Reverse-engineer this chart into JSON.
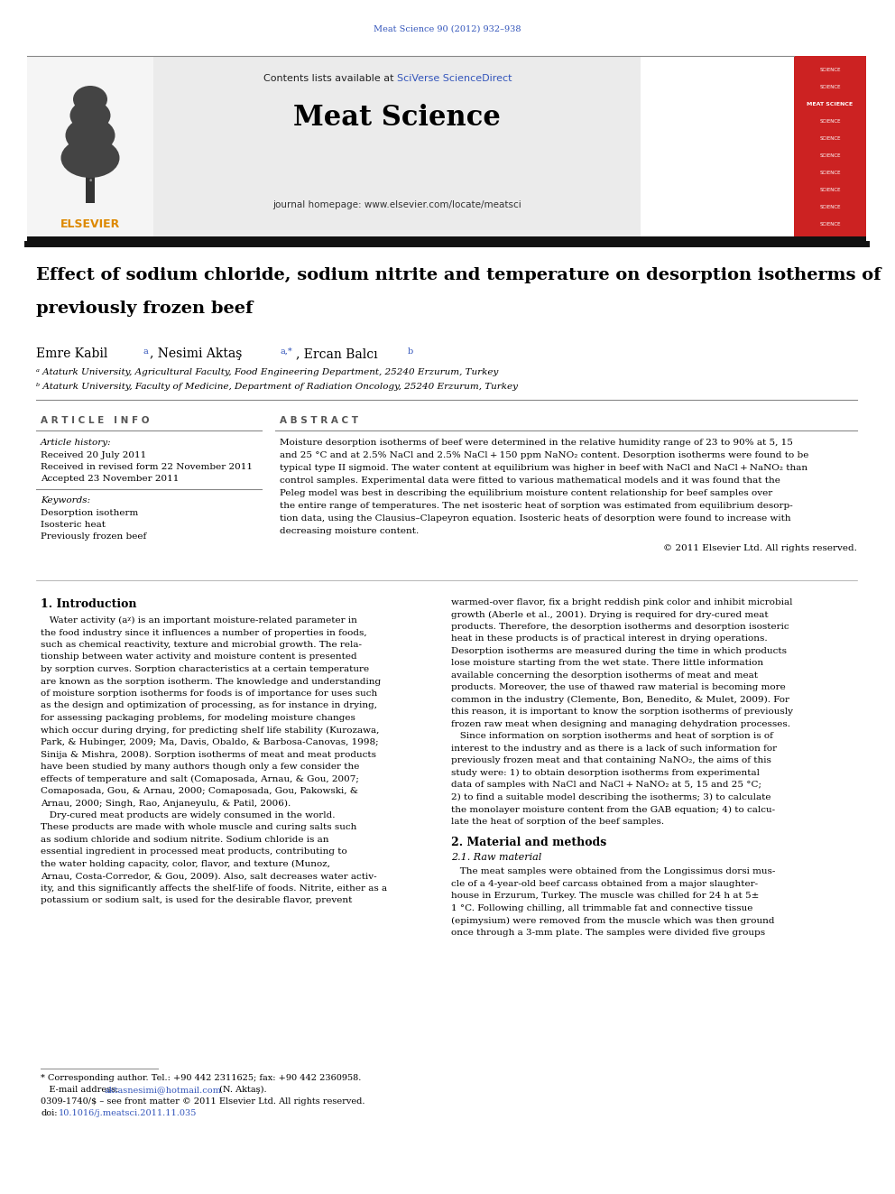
{
  "page_width": 9.92,
  "page_height": 13.23,
  "background_color": "#ffffff",
  "journal_ref": "Meat Science 90 (2012) 932–938",
  "journal_ref_color": "#3355bb",
  "header_bg": "#ebebeb",
  "header_text1": "Contents lists available at ",
  "header_sciverse": "SciVerse ScienceDirect",
  "header_sciverse_color": "#3355bb",
  "journal_name": "Meat Science",
  "journal_homepage": "journal homepage: www.elsevier.com/locate/meatsci",
  "title_line1": "Effect of sodium chloride, sodium nitrite and temperature on desorption isotherms of",
  "title_line2": "previously frozen beef",
  "author_main": "Emre Kabil ",
  "author_a1": "a",
  "author_mid": ", Nesimi Aktaş ",
  "author_a2": "a,*",
  "author_end": ", Ercan Balcı ",
  "author_b": "b",
  "affil_a": "ᵃ Ataturk University, Agricultural Faculty, Food Engineering Department, 25240 Erzurum, Turkey",
  "affil_b": "ᵇ Ataturk University, Faculty of Medicine, Department of Radiation Oncology, 25240 Erzurum, Turkey",
  "article_info_header": "A R T I C L E   I N F O",
  "abstract_header": "A B S T R A C T",
  "article_history_label": "Article history:",
  "received1": "Received 20 July 2011",
  "received2": "Received in revised form 22 November 2011",
  "accepted": "Accepted 23 November 2011",
  "keywords_label": "Keywords:",
  "keyword1": "Desorption isotherm",
  "keyword2": "Isosteric heat",
  "keyword3": "Previously frozen beef",
  "abstract_lines": [
    "Moisture desorption isotherms of beef were determined in the relative humidity range of 23 to 90% at 5, 15",
    "and 25 °C and at 2.5% NaCl and 2.5% NaCl + 150 ppm NaNO₂ content. Desorption isotherms were found to be",
    "typical type II sigmoid. The water content at equilibrium was higher in beef with NaCl and NaCl + NaNO₂ than",
    "control samples. Experimental data were fitted to various mathematical models and it was found that the",
    "Peleg model was best in describing the equilibrium moisture content relationship for beef samples over",
    "the entire range of temperatures. The net isosteric heat of sorption was estimated from equilibrium desorp-",
    "tion data, using the Clausius–Clapeyron equation. Isosteric heats of desorption were found to increase with",
    "decreasing moisture content."
  ],
  "copyright": "© 2011 Elsevier Ltd. All rights reserved.",
  "intro_header": "1. Introduction",
  "intro_col1_lines": [
    "   Water activity (aᵡ) is an important moisture-related parameter in",
    "the food industry since it influences a number of properties in foods,",
    "such as chemical reactivity, texture and microbial growth. The rela-",
    "tionship between water activity and moisture content is presented",
    "by sorption curves. Sorption characteristics at a certain temperature",
    "are known as the sorption isotherm. The knowledge and understanding",
    "of moisture sorption isotherms for foods is of importance for uses such",
    "as the design and optimization of processing, as for instance in drying,",
    "for assessing packaging problems, for modeling moisture changes",
    "which occur during drying, for predicting shelf life stability (Kurozawa,",
    "Park, & Hubinger, 2009; Ma, Davis, Obaldo, & Barbosa-Canovas, 1998;",
    "Sinija & Mishra, 2008). Sorption isotherms of meat and meat products",
    "have been studied by many authors though only a few consider the",
    "effects of temperature and salt (Comaposada, Arnau, & Gou, 2007;",
    "Comaposada, Gou, & Arnau, 2000; Comaposada, Gou, Pakowski, &",
    "Arnau, 2000; Singh, Rao, Anjaneyulu, & Patil, 2006).",
    "   Dry-cured meat products are widely consumed in the world.",
    "These products are made with whole muscle and curing salts such",
    "as sodium chloride and sodium nitrite. Sodium chloride is an",
    "essential ingredient in processed meat products, contributing to",
    "the water holding capacity, color, flavor, and texture (Munoz,",
    "Arnau, Costa-Corredor, & Gou, 2009). Also, salt decreases water activ-",
    "ity, and this significantly affects the shelf-life of foods. Nitrite, either as a",
    "potassium or sodium salt, is used for the desirable flavor, prevent"
  ],
  "intro_col2_lines": [
    "warmed-over flavor, fix a bright reddish pink color and inhibit microbial",
    "growth (Aberle et al., 2001). Drying is required for dry-cured meat",
    "products. Therefore, the desorption isotherms and desorption isosteric",
    "heat in these products is of practical interest in drying operations.",
    "Desorption isotherms are measured during the time in which products",
    "lose moisture starting from the wet state. There little information",
    "available concerning the desorption isotherms of meat and meat",
    "products. Moreover, the use of thawed raw material is becoming more",
    "common in the industry (Clemente, Bon, Benedito, & Mulet, 2009). For",
    "this reason, it is important to know the sorption isotherms of previously",
    "frozen raw meat when designing and managing dehydration processes.",
    "   Since information on sorption isotherms and heat of sorption is of",
    "interest to the industry and as there is a lack of such information for",
    "previously frozen meat and that containing NaNO₂, the aims of this",
    "study were: 1) to obtain desorption isotherms from experimental",
    "data of samples with NaCl and NaCl + NaNO₂ at 5, 15 and 25 °C;",
    "2) to find a suitable model describing the isotherms; 3) to calculate",
    "the monolayer moisture content from the GAB equation; 4) to calcu-",
    "late the heat of sorption of the beef samples."
  ],
  "section2_header": "2. Material and methods",
  "section21_header": "2.1. Raw material",
  "section21_lines": [
    "   The meat samples were obtained from the Longissimus dorsi mus-",
    "cle of a 4-year-old beef carcass obtained from a major slaughter-",
    "house in Erzurum, Turkey. The muscle was chilled for 24 h at 5±",
    "1 °C. Following chilling, all trimmable fat and connective tissue",
    "(epimysium) were removed from the muscle which was then ground",
    "once through a 3-mm plate. The samples were divided five groups"
  ],
  "footnote_star": "* Corresponding author. Tel.: +90 442 2311625; fax: +90 442 2360958.",
  "footnote_email_pre": "   E-mail address: ",
  "footnote_email": "aktasnesimi@hotmail.com",
  "footnote_email_post": " (N. Aktaş).",
  "footnote_license": "0309-1740/$ – see front matter © 2011 Elsevier Ltd. All rights reserved.",
  "footnote_doi_pre": "doi:",
  "footnote_doi": "10.1016/j.meatsci.2011.11.035",
  "link_color": "#3355bb"
}
